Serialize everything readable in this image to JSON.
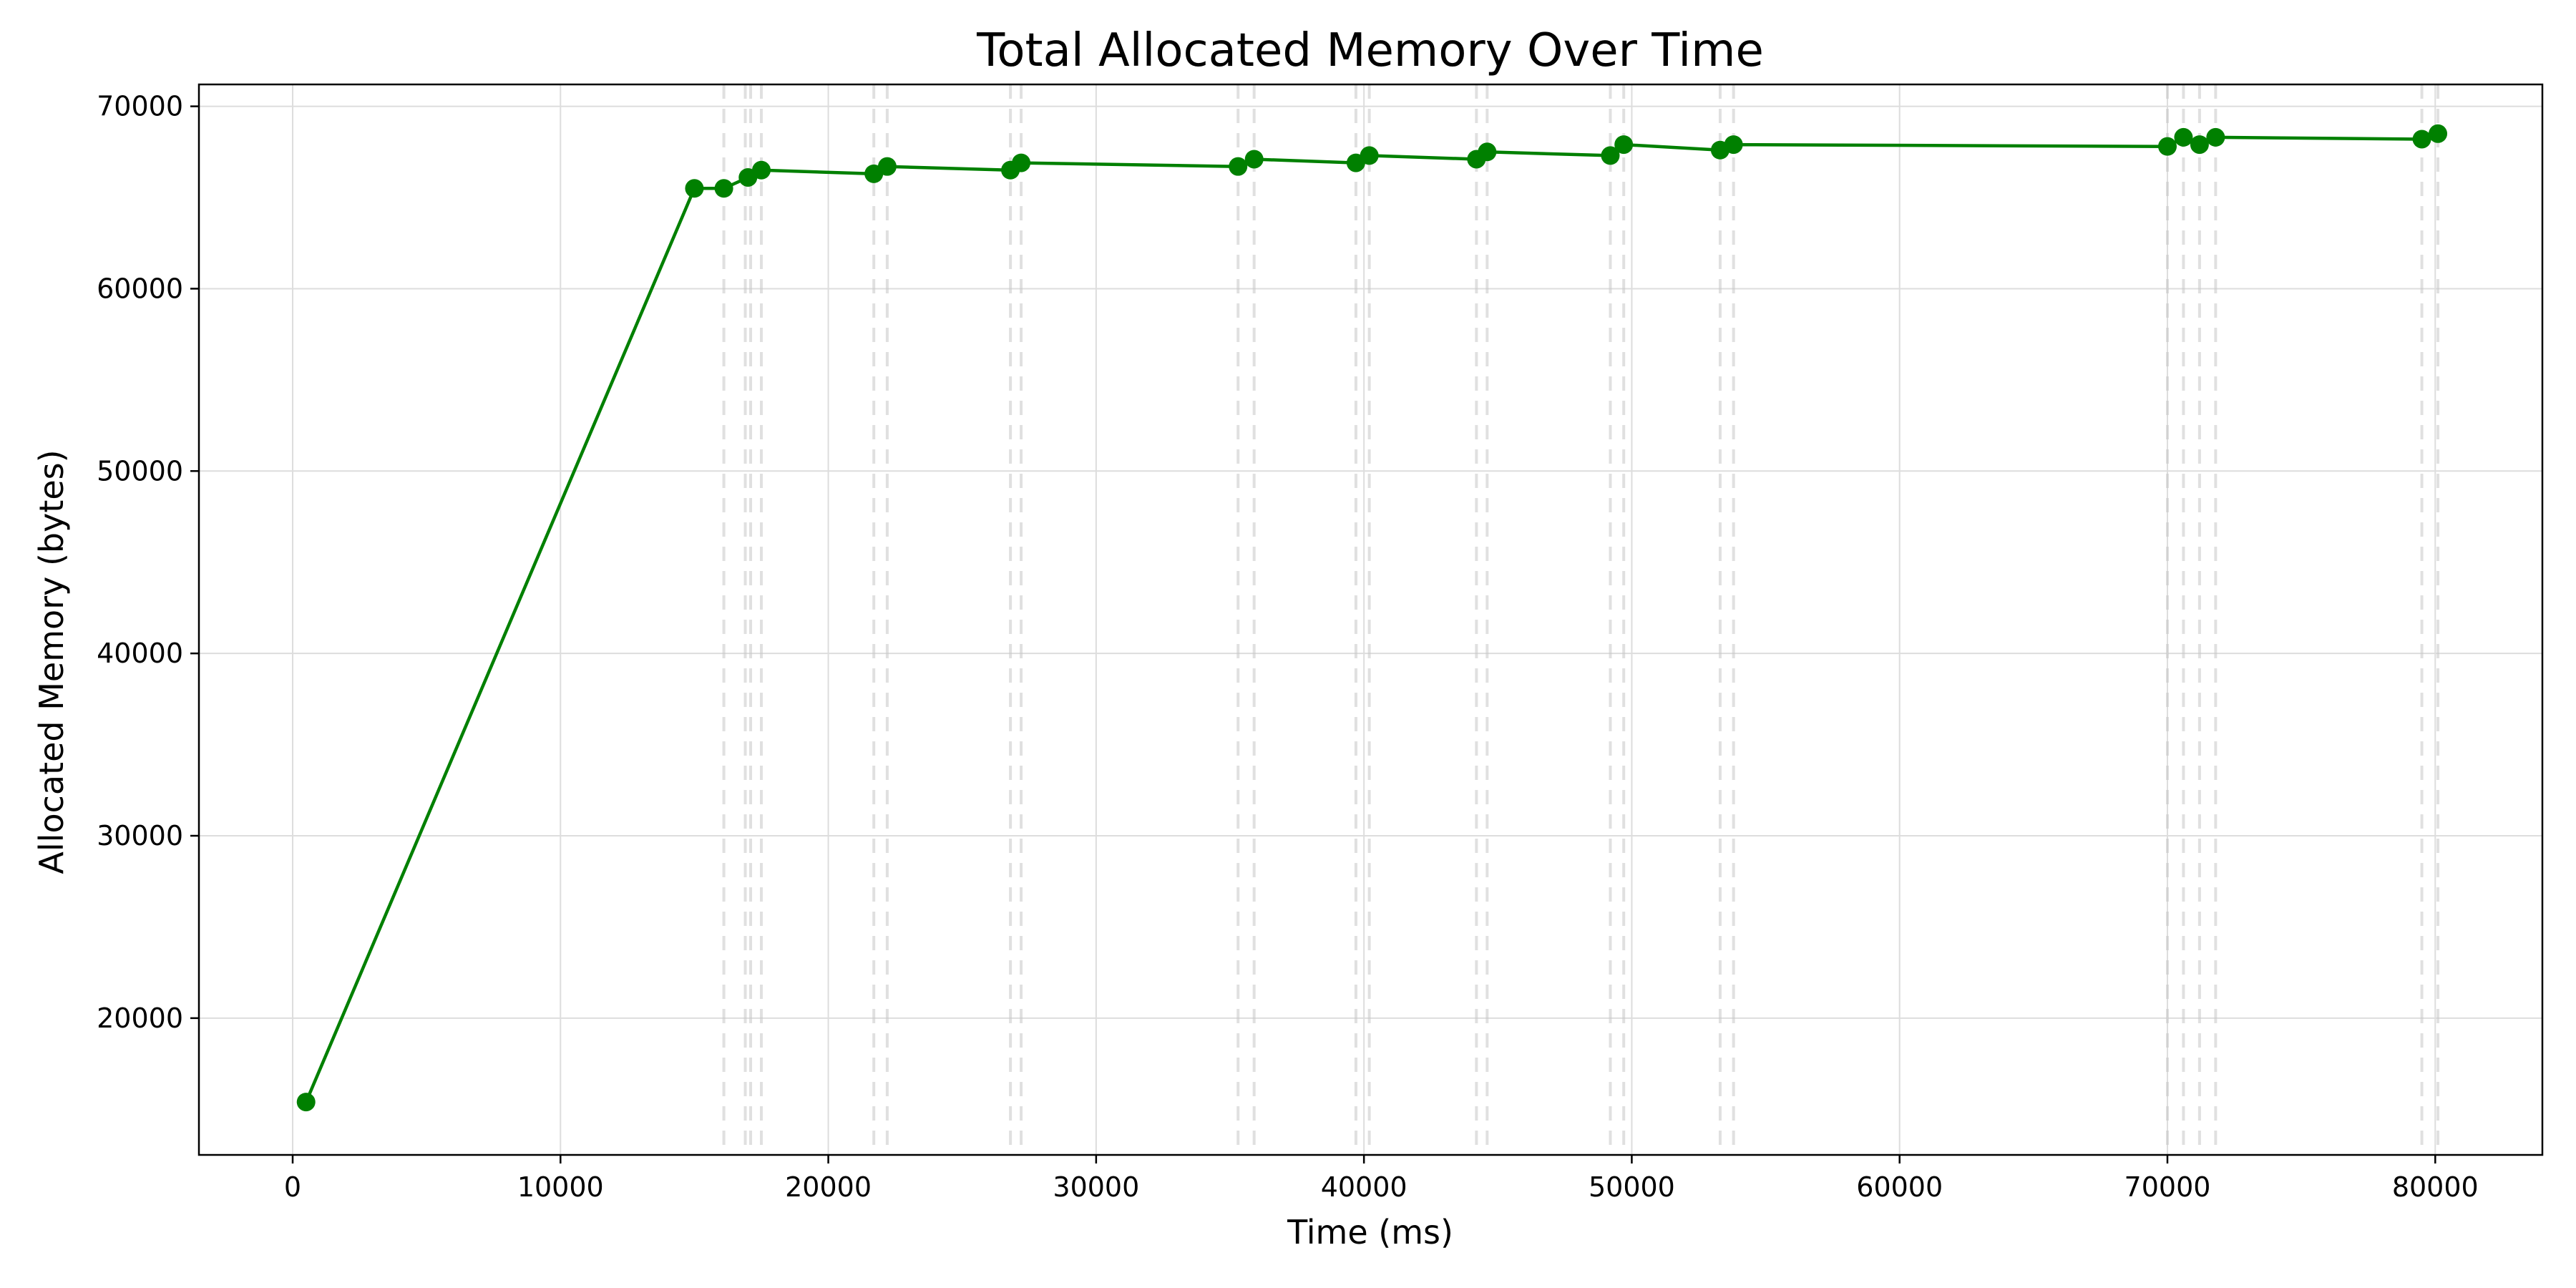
{
  "chart_data": {
    "type": "line",
    "title": "Total Allocated Memory Over Time",
    "xlabel": "Time (ms)",
    "ylabel": "Allocated Memory (bytes)",
    "xlim": [
      -3500,
      84000
    ],
    "ylim": [
      12500,
      71200
    ],
    "xticks": [
      0,
      10000,
      20000,
      30000,
      40000,
      50000,
      60000,
      70000,
      80000
    ],
    "yticks": [
      20000,
      30000,
      40000,
      50000,
      60000,
      70000
    ],
    "grid": true,
    "legend": "none",
    "series": [
      {
        "color": "#008000",
        "marker": "circle",
        "x": [
          500,
          15000,
          16100,
          17000,
          17500,
          21700,
          22200,
          26800,
          27200,
          35300,
          35900,
          39700,
          40200,
          44200,
          44600,
          49200,
          49700,
          53300,
          53800,
          70000,
          70600,
          71200,
          71800,
          79500,
          80100
        ],
        "y": [
          15400,
          65500,
          65500,
          66100,
          66500,
          66300,
          66700,
          66500,
          66900,
          66700,
          67100,
          66900,
          67300,
          67100,
          67500,
          67300,
          67900,
          67600,
          67900,
          67800,
          68300,
          67900,
          68300,
          68200,
          68500
        ]
      }
    ],
    "event_lines_x": [
      16100,
      16900,
      17100,
      17500,
      21700,
      22200,
      26800,
      27200,
      35300,
      35900,
      39700,
      40200,
      44200,
      44600,
      49200,
      49700,
      53300,
      53800,
      70000,
      70600,
      71200,
      71800,
      79500,
      80100
    ]
  }
}
